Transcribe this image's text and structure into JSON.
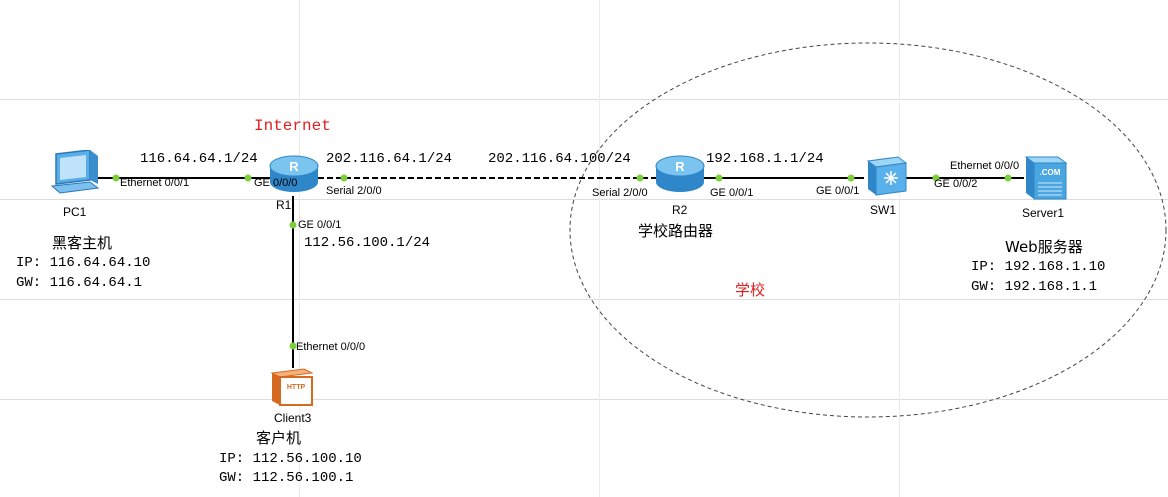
{
  "zones": {
    "internet_label": "Internet",
    "school_label": "学校"
  },
  "devices": {
    "pc1": {
      "name": "PC1",
      "title": "黑客主机",
      "ip": "IP: 116.64.64.10",
      "gw": "GW: 116.64.64.1"
    },
    "r1": {
      "name": "R1"
    },
    "r2": {
      "name": "R2",
      "title": "学校路由器"
    },
    "sw1": {
      "name": "SW1"
    },
    "server1": {
      "name": "Server1",
      "title": "Web服务器",
      "ip": "IP: 192.168.1.10",
      "gw": "GW: 192.168.1.1",
      "badge": ".COM"
    },
    "client3": {
      "name": "Client3",
      "title": "客户机",
      "ip": "IP: 112.56.100.10",
      "gw": "GW: 112.56.100.1",
      "badge": "HTTP"
    }
  },
  "ports": {
    "pc1_eth": "Ethernet 0/0/1",
    "r1_ge000": "GE 0/0/0",
    "r1_serial": "Serial 2/0/0",
    "r1_ge001": "GE 0/0/1",
    "client3_eth": "Ethernet 0/0/0",
    "r2_serial": "Serial 2/0/0",
    "r2_ge001": "GE 0/0/1",
    "sw1_ge001": "GE 0/0/1",
    "sw1_ge002": "GE 0/0/2",
    "server1_eth": "Ethernet 0/0/0"
  },
  "addresses": {
    "r1_ge000": "116.64.64.1/24",
    "r1_serial": "202.116.64.1/24",
    "r2_serial": "202.116.64.100/24",
    "r2_ge001": "192.168.1.1/24",
    "r1_ge001": "112.56.100.1/24"
  },
  "colors": {
    "link": "#000000",
    "port_dot": "#7ccf3a",
    "zone_label": "#e02020",
    "router": "#4aa6e0",
    "switch": "#4aa6e0"
  }
}
